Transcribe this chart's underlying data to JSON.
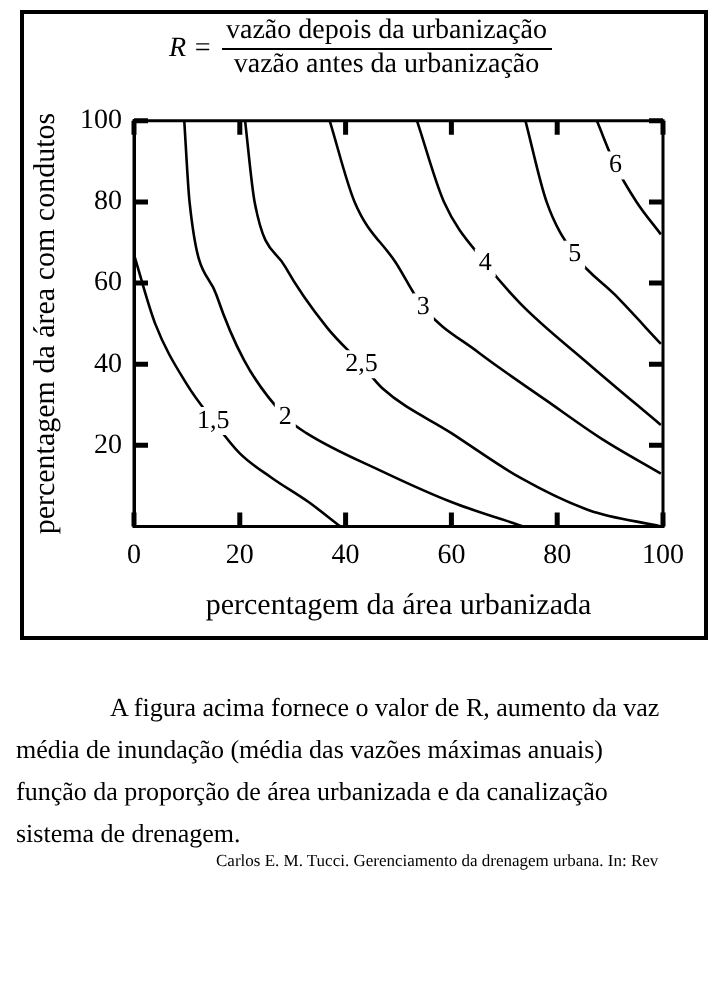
{
  "chart_data": {
    "type": "line",
    "title": "R = vazão depois da urbanização",
    "subtitle": "vazão antes da urbanização",
    "xlabel": "percentagem da área urbanizada",
    "ylabel": "percentagem da área com condutos",
    "series": [
      {
        "name": "1,5",
        "color": "#000000",
        "x": [
          0,
          4,
          10,
          15,
          20,
          26,
          33,
          39
        ],
        "values": [
          67,
          50,
          35,
          26,
          18,
          12,
          6,
          0
        ]
      },
      {
        "name": "2",
        "color": "#000000",
        "x": [
          9.5,
          10.5,
          15.6,
          20.8,
          28.6,
          32.6,
          47,
          60,
          73.6
        ],
        "values": [
          100,
          80,
          57,
          41,
          27,
          23,
          13.5,
          6,
          0
        ]
      },
      {
        "name": "2,5",
        "color": "#000000",
        "x": [
          21,
          22.8,
          28.6,
          36.5,
          43,
          47,
          60,
          73,
          86,
          99.6
        ],
        "values": [
          100,
          80,
          64,
          49,
          40,
          34,
          23,
          12,
          4,
          0
        ]
      },
      {
        "name": "3",
        "color": "#000000",
        "x": [
          37,
          41.7,
          49.5,
          54.7,
          65,
          78,
          88.5,
          99.6
        ],
        "values": [
          100,
          80,
          65,
          54,
          43,
          31,
          21.5,
          13
        ]
      },
      {
        "name": "4",
        "color": "#000000",
        "x": [
          53.5,
          58.6,
          66.4,
          73,
          86,
          99.6
        ],
        "values": [
          100,
          80,
          65,
          55,
          40,
          25
        ]
      },
      {
        "name": "5",
        "color": "#000000",
        "x": [
          74,
          78,
          83.3,
          91,
          99.6
        ],
        "values": [
          100,
          80,
          67,
          57,
          45
        ]
      },
      {
        "name": "6",
        "color": "#000000",
        "x": [
          87.5,
          91,
          95,
          99.6
        ],
        "values": [
          100,
          89,
          80,
          72
        ]
      }
    ],
    "xlim": [
      0,
      100
    ],
    "xticks": [
      0,
      20,
      40,
      60,
      80,
      100
    ],
    "ylim": [
      0,
      100
    ],
    "yticks": [
      20,
      40,
      60,
      80,
      100
    ],
    "grid": false,
    "legend": false,
    "marker": "none",
    "line_style": "solid",
    "annotations": [
      "A figura acima fornece o valor de R, aumento da vaz",
      "média de inundação (média das vazões máximas anuais)",
      "função da proporção de área urbanizada e da canalização",
      "sistema de drenagem.",
      "Carlos E. M. Tucci. Gerenciamento da drenagem urbana. In: Rev"
    ]
  }
}
